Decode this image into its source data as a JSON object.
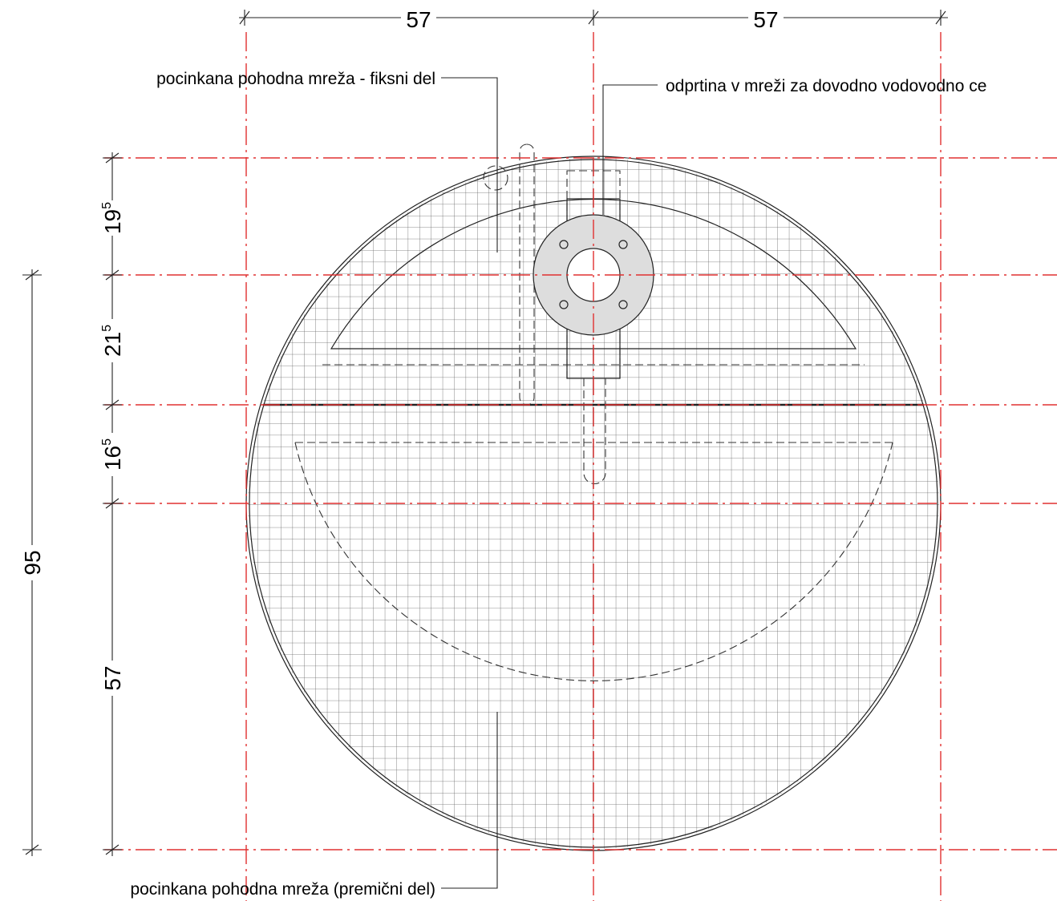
{
  "dimensions": {
    "top": [
      "57",
      "57"
    ],
    "left": [
      {
        "main": "19",
        "sup": "5"
      },
      {
        "main": "21",
        "sup": "5"
      },
      {
        "main": "16",
        "sup": "5"
      },
      {
        "main": "57"
      }
    ],
    "total": "95"
  },
  "labels": {
    "fixed": "pocinkana pohodna mreža - fiksni del",
    "opening": "odprtina v mreži za dovodno vodovodno ce",
    "movable": "pocinkana pohodna mreža (premični del)"
  }
}
